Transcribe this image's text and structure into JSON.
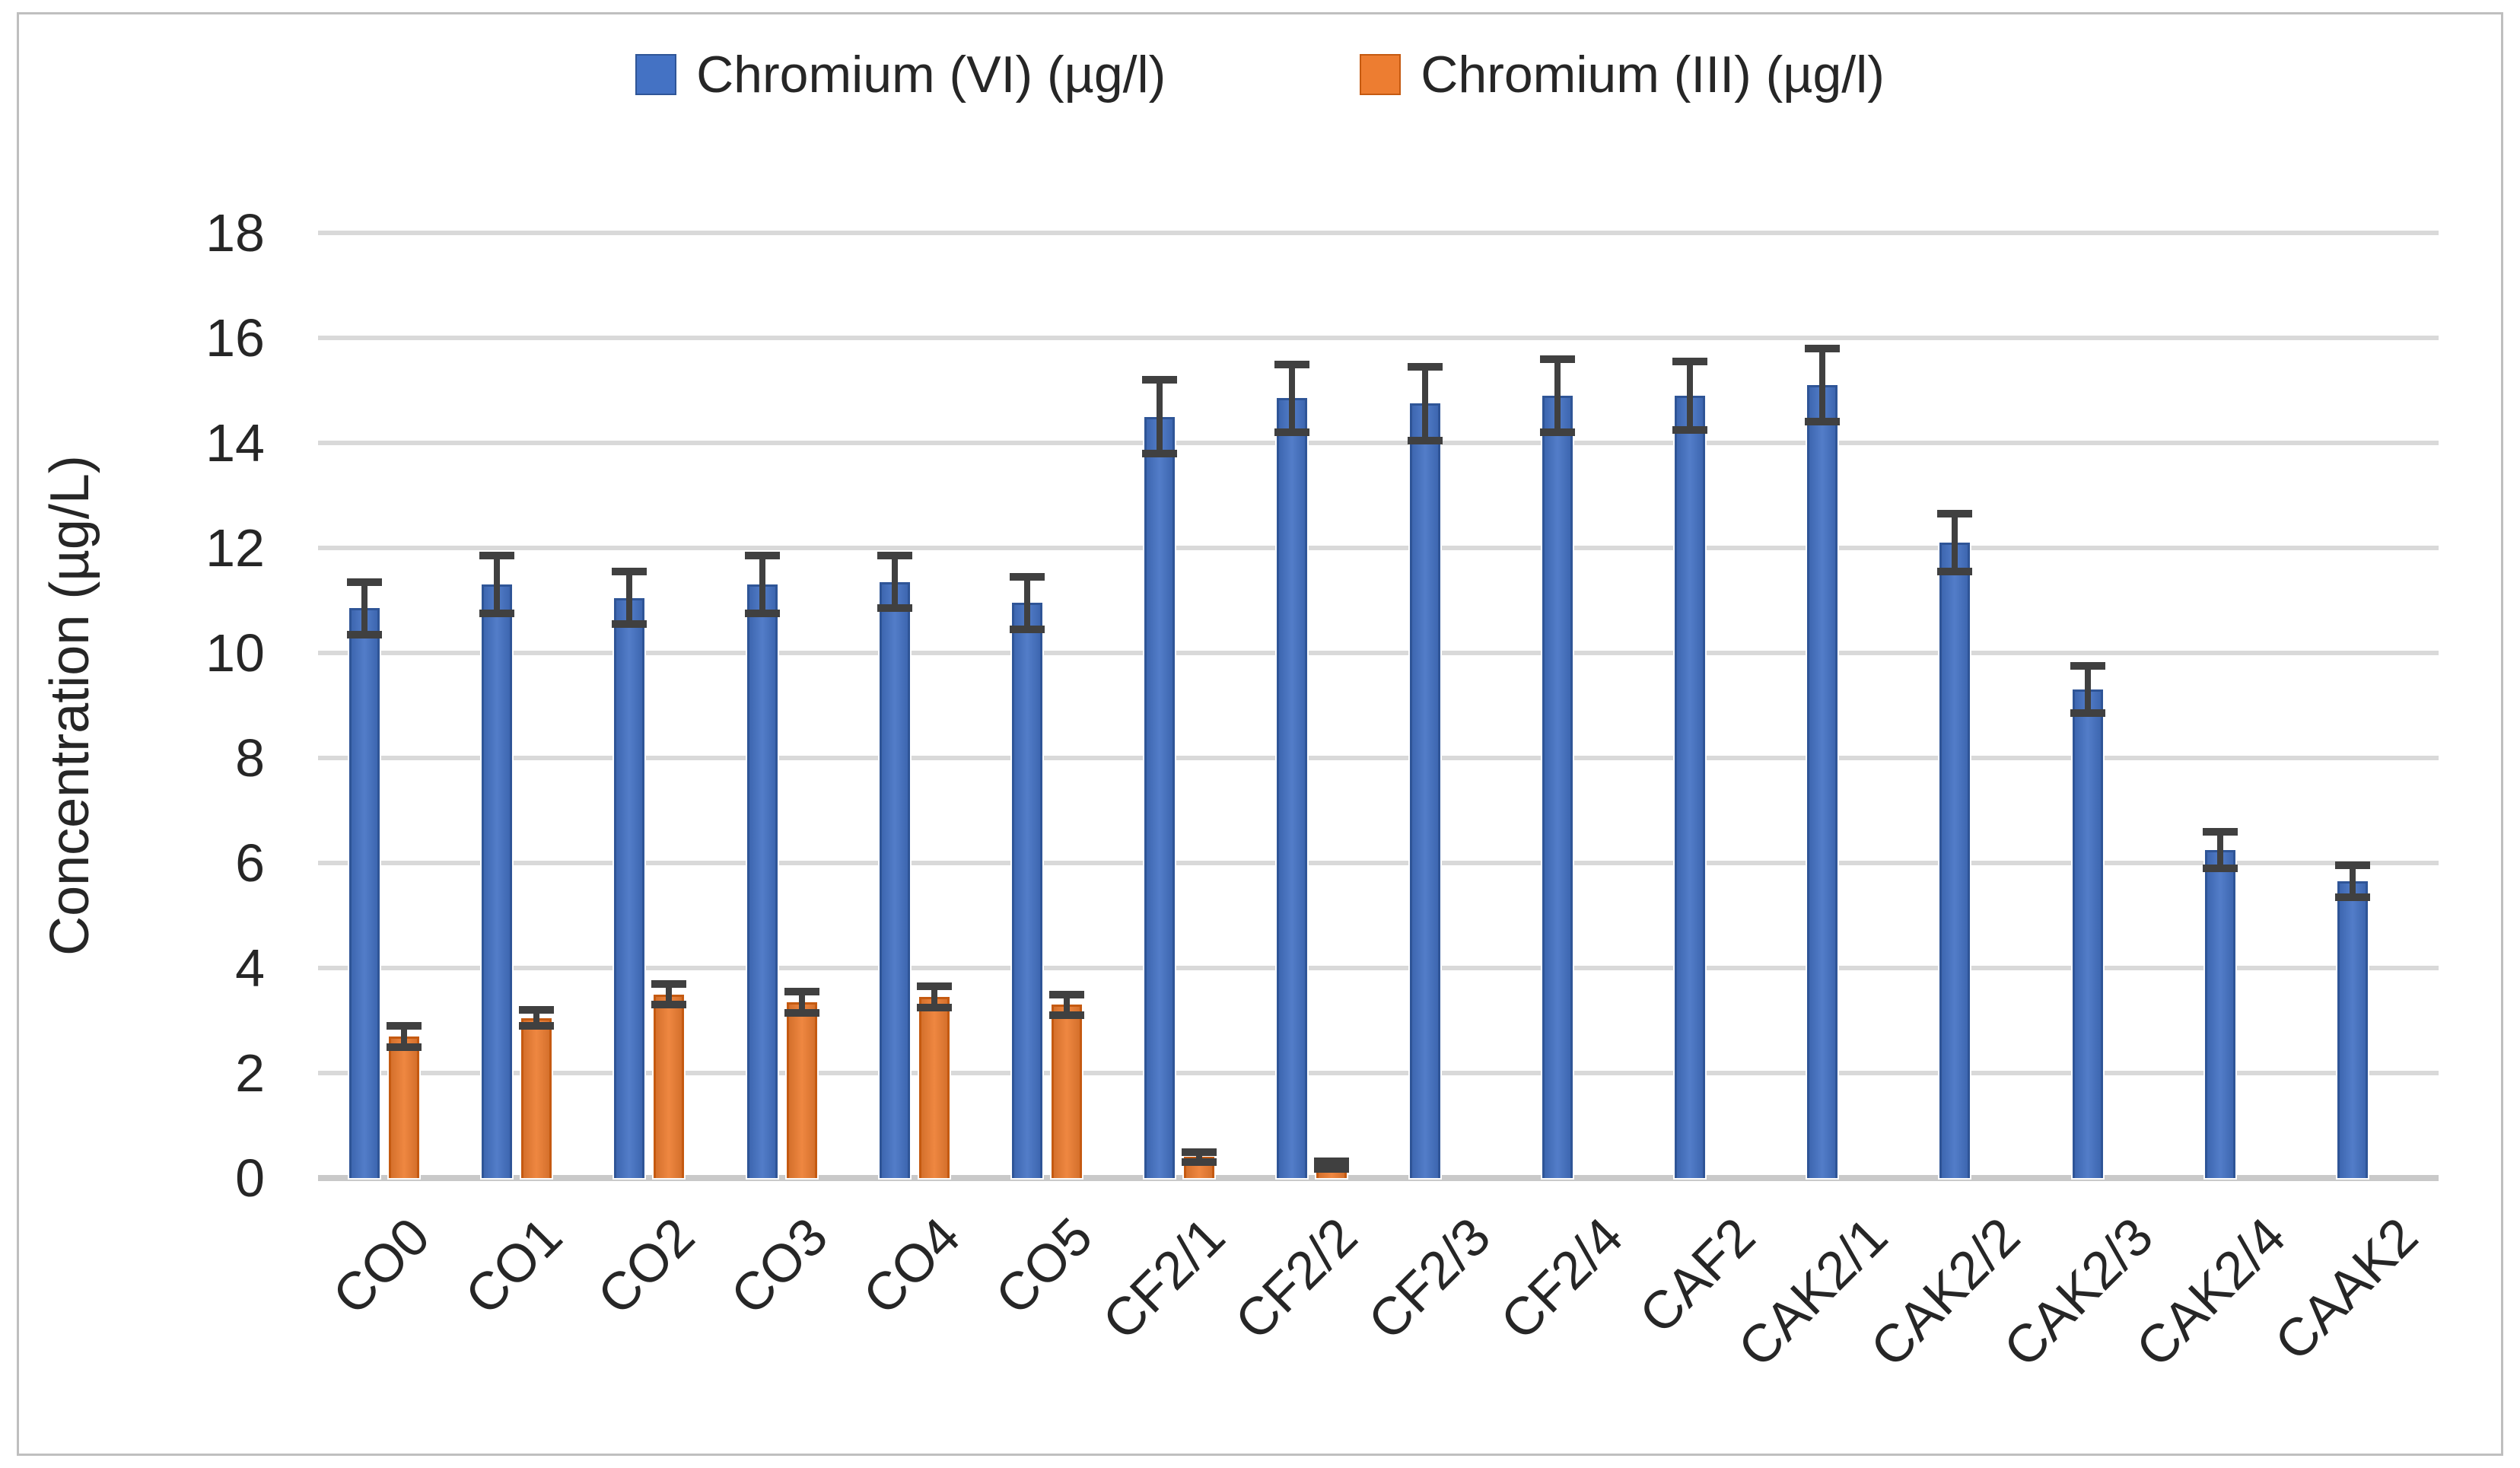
{
  "chart_data": {
    "type": "bar",
    "ylabel": "Concentration (µg/L)",
    "xlabel": "",
    "ylim": [
      0,
      18
    ],
    "yticks": [
      0,
      2,
      4,
      6,
      8,
      10,
      12,
      14,
      16,
      18
    ],
    "grid": true,
    "legend_position": "top-center",
    "categories": [
      "CO0",
      "CO1",
      "CO2",
      "CO3",
      "CO4",
      "CO5",
      "CF2/1",
      "CF2/2",
      "CF2/3",
      "CF2/4",
      "CAF2",
      "CAK2/1",
      "CAK2/2",
      "CAK2/3",
      "CAK2/4",
      "CAAK2"
    ],
    "series": [
      {
        "name": "Chromium (VI) (µg/l)",
        "color": "#4472C4",
        "edge_color": "#2F5597",
        "values": [
          10.85,
          11.3,
          11.05,
          11.3,
          11.35,
          10.95,
          14.5,
          14.85,
          14.75,
          14.9,
          14.9,
          15.1,
          12.1,
          9.3,
          6.25,
          5.65
        ],
        "errors": [
          0.5,
          0.55,
          0.5,
          0.55,
          0.5,
          0.5,
          0.7,
          0.65,
          0.7,
          0.7,
          0.65,
          0.7,
          0.55,
          0.45,
          0.35,
          0.3
        ]
      },
      {
        "name": "Chromium (III) (µg/l)",
        "color": "#ED7D31",
        "edge_color": "#C55A11",
        "values": [
          2.7,
          3.05,
          3.5,
          3.35,
          3.45,
          3.3,
          0.4,
          0.25,
          null,
          null,
          null,
          null,
          null,
          null,
          null,
          null
        ],
        "errors": [
          0.2,
          0.15,
          0.2,
          0.2,
          0.2,
          0.2,
          0.1,
          0.07,
          null,
          null,
          null,
          null,
          null,
          null,
          null,
          null
        ]
      }
    ],
    "error_bar_color": "#404040",
    "gridline_color": "#D9D9D9",
    "axis_line_color": "#C9C9C9",
    "text_color": "#262626",
    "frame_border_color": "#BFBFBF",
    "background": "#FFFFFF"
  }
}
